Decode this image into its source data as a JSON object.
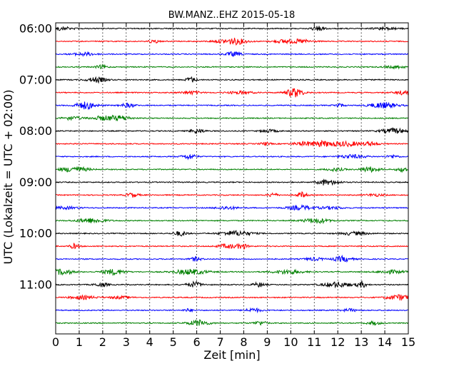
{
  "chart_data": {
    "type": "line",
    "title": "BW.MANZ..EHZ 2015-05-18",
    "xlabel": "Zeit  [min]",
    "ylabel": "UTC (Lokalzeit = UTC + 02:00)",
    "xlim": [
      0,
      15
    ],
    "x_ticks": [
      "0",
      "1",
      "2",
      "3",
      "4",
      "5",
      "6",
      "7",
      "8",
      "9",
      "10",
      "11",
      "12",
      "13",
      "14",
      "15"
    ],
    "y_ticks": [
      {
        "label": "06:00",
        "row": 0
      },
      {
        "label": "07:00",
        "row": 4
      },
      {
        "label": "08:00",
        "row": 8
      },
      {
        "label": "09:00",
        "row": 12
      },
      {
        "label": "10:00",
        "row": 16
      },
      {
        "label": "11:00",
        "row": 20
      }
    ],
    "grid": "vertical dotted",
    "row_minutes": 15,
    "trace_colors": [
      "#000000",
      "#ff0000",
      "#0000ff",
      "#008000"
    ],
    "series": [
      {
        "start": "06:00",
        "color": "#000000"
      },
      {
        "start": "06:15",
        "color": "#ff0000"
      },
      {
        "start": "06:30",
        "color": "#0000ff"
      },
      {
        "start": "06:45",
        "color": "#008000"
      },
      {
        "start": "07:00",
        "color": "#000000"
      },
      {
        "start": "07:15",
        "color": "#ff0000"
      },
      {
        "start": "07:30",
        "color": "#0000ff"
      },
      {
        "start": "07:45",
        "color": "#008000"
      },
      {
        "start": "08:00",
        "color": "#000000"
      },
      {
        "start": "08:15",
        "color": "#ff0000"
      },
      {
        "start": "08:30",
        "color": "#0000ff"
      },
      {
        "start": "08:45",
        "color": "#008000"
      },
      {
        "start": "09:00",
        "color": "#000000"
      },
      {
        "start": "09:15",
        "color": "#ff0000"
      },
      {
        "start": "09:30",
        "color": "#0000ff"
      },
      {
        "start": "09:45",
        "color": "#008000"
      },
      {
        "start": "10:00",
        "color": "#000000"
      },
      {
        "start": "10:15",
        "color": "#ff0000"
      },
      {
        "start": "10:30",
        "color": "#0000ff"
      },
      {
        "start": "10:45",
        "color": "#008000"
      },
      {
        "start": "11:00",
        "color": "#000000"
      },
      {
        "start": "11:15",
        "color": "#ff0000"
      },
      {
        "start": "11:30",
        "color": "#0000ff"
      },
      {
        "start": "11:45",
        "color": "#008000"
      }
    ]
  }
}
